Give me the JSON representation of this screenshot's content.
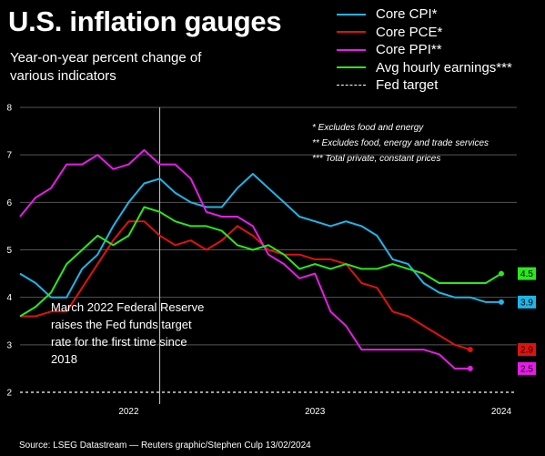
{
  "title": "U.S. inflation gauges",
  "subtitle": "Year-on-year percent change of various indicators",
  "footnotes": [
    "* Excludes food and energy",
    "** Excludes food, energy and trade services",
    "*** Total private, constant prices"
  ],
  "annotation": "March 2022 Federal Reserve raises the Fed funds target rate for the first time since 2018",
  "source": "Source: LSEG Datastream — Reuters graphic/Stephen Culp 13/02/2024",
  "chart_data": {
    "type": "line",
    "title": "U.S. inflation gauges",
    "x": [
      "2021-06",
      "2021-07",
      "2021-08",
      "2021-09",
      "2021-10",
      "2021-11",
      "2021-12",
      "2022-01",
      "2022-02",
      "2022-03",
      "2022-04",
      "2022-05",
      "2022-06",
      "2022-07",
      "2022-08",
      "2022-09",
      "2022-10",
      "2022-11",
      "2022-12",
      "2023-01",
      "2023-02",
      "2023-03",
      "2023-04",
      "2023-05",
      "2023-06",
      "2023-07",
      "2023-08",
      "2023-09",
      "2023-10",
      "2023-11",
      "2023-12",
      "2024-01"
    ],
    "x_tick_labels": [
      {
        "label": "2022",
        "date": "2022-01"
      },
      {
        "label": "2023",
        "date": "2023-01"
      },
      {
        "label": "2024",
        "date": "2024-01"
      }
    ],
    "ylim": [
      2,
      8
    ],
    "y_ticks": [
      2,
      3,
      4,
      5,
      6,
      7,
      8
    ],
    "grid": true,
    "legend_position": "top-right",
    "series": [
      {
        "name": "Core CPI*",
        "color": "#1eb6e8",
        "end_label": "3.9",
        "points": [
          [
            "2021-06",
            4.5
          ],
          [
            "2021-07",
            4.3
          ],
          [
            "2021-08",
            4.0
          ],
          [
            "2021-09",
            4.0
          ],
          [
            "2021-10",
            4.6
          ],
          [
            "2021-11",
            4.9
          ],
          [
            "2021-12",
            5.5
          ],
          [
            "2022-01",
            6.0
          ],
          [
            "2022-02",
            6.4
          ],
          [
            "2022-03",
            6.5
          ],
          [
            "2022-04",
            6.2
          ],
          [
            "2022-05",
            6.0
          ],
          [
            "2022-06",
            5.9
          ],
          [
            "2022-07",
            5.9
          ],
          [
            "2022-08",
            6.3
          ],
          [
            "2022-09",
            6.6
          ],
          [
            "2022-10",
            6.3
          ],
          [
            "2022-11",
            6.0
          ],
          [
            "2022-12",
            5.7
          ],
          [
            "2023-01",
            5.6
          ],
          [
            "2023-02",
            5.5
          ],
          [
            "2023-03",
            5.6
          ],
          [
            "2023-04",
            5.5
          ],
          [
            "2023-05",
            5.3
          ],
          [
            "2023-06",
            4.8
          ],
          [
            "2023-07",
            4.7
          ],
          [
            "2023-08",
            4.3
          ],
          [
            "2023-09",
            4.1
          ],
          [
            "2023-10",
            4.0
          ],
          [
            "2023-11",
            4.0
          ],
          [
            "2023-12",
            3.9
          ],
          [
            "2024-01",
            3.9
          ]
        ]
      },
      {
        "name": "Core PCE*",
        "color": "#e0120f",
        "end_label": "2.9",
        "points": [
          [
            "2021-06",
            3.6
          ],
          [
            "2021-07",
            3.6
          ],
          [
            "2021-08",
            3.7
          ],
          [
            "2021-09",
            3.7
          ],
          [
            "2021-10",
            4.2
          ],
          [
            "2021-11",
            4.7
          ],
          [
            "2021-12",
            5.2
          ],
          [
            "2022-01",
            5.6
          ],
          [
            "2022-02",
            5.6
          ],
          [
            "2022-03",
            5.3
          ],
          [
            "2022-04",
            5.1
          ],
          [
            "2022-05",
            5.2
          ],
          [
            "2022-06",
            5.0
          ],
          [
            "2022-07",
            5.2
          ],
          [
            "2022-08",
            5.5
          ],
          [
            "2022-09",
            5.3
          ],
          [
            "2022-10",
            5.0
          ],
          [
            "2022-11",
            4.9
          ],
          [
            "2022-12",
            4.9
          ],
          [
            "2023-01",
            4.8
          ],
          [
            "2023-02",
            4.8
          ],
          [
            "2023-03",
            4.7
          ],
          [
            "2023-04",
            4.3
          ],
          [
            "2023-05",
            4.2
          ],
          [
            "2023-06",
            3.7
          ],
          [
            "2023-07",
            3.6
          ],
          [
            "2023-08",
            3.4
          ],
          [
            "2023-09",
            3.2
          ],
          [
            "2023-10",
            3.0
          ],
          [
            "2023-11",
            2.9
          ]
        ]
      },
      {
        "name": "Core PPI**",
        "color": "#e81ce8",
        "end_label": "2.5",
        "points": [
          [
            "2021-06",
            5.7
          ],
          [
            "2021-07",
            6.1
          ],
          [
            "2021-08",
            6.3
          ],
          [
            "2021-09",
            6.8
          ],
          [
            "2021-10",
            6.8
          ],
          [
            "2021-11",
            7.0
          ],
          [
            "2021-12",
            6.7
          ],
          [
            "2022-01",
            6.8
          ],
          [
            "2022-02",
            7.1
          ],
          [
            "2022-03",
            6.8
          ],
          [
            "2022-04",
            6.8
          ],
          [
            "2022-05",
            6.5
          ],
          [
            "2022-06",
            5.8
          ],
          [
            "2022-07",
            5.7
          ],
          [
            "2022-08",
            5.7
          ],
          [
            "2022-09",
            5.5
          ],
          [
            "2022-10",
            4.9
          ],
          [
            "2022-11",
            4.7
          ],
          [
            "2022-12",
            4.4
          ],
          [
            "2023-01",
            4.5
          ],
          [
            "2023-02",
            3.7
          ],
          [
            "2023-03",
            3.4
          ],
          [
            "2023-04",
            2.9
          ],
          [
            "2023-05",
            2.9
          ],
          [
            "2023-06",
            2.9
          ],
          [
            "2023-07",
            2.9
          ],
          [
            "2023-08",
            2.9
          ],
          [
            "2023-09",
            2.8
          ],
          [
            "2023-10",
            2.5
          ],
          [
            "2023-11",
            2.5
          ]
        ]
      },
      {
        "name": "Avg hourly earnings***",
        "color": "#2be81c",
        "end_label": "4.5",
        "points": [
          [
            "2021-06",
            3.6
          ],
          [
            "2021-07",
            3.8
          ],
          [
            "2021-08",
            4.1
          ],
          [
            "2021-09",
            4.7
          ],
          [
            "2021-10",
            5.0
          ],
          [
            "2021-11",
            5.3
          ],
          [
            "2021-12",
            5.1
          ],
          [
            "2022-01",
            5.3
          ],
          [
            "2022-02",
            5.9
          ],
          [
            "2022-03",
            5.8
          ],
          [
            "2022-04",
            5.6
          ],
          [
            "2022-05",
            5.5
          ],
          [
            "2022-06",
            5.5
          ],
          [
            "2022-07",
            5.4
          ],
          [
            "2022-08",
            5.1
          ],
          [
            "2022-09",
            5.0
          ],
          [
            "2022-10",
            5.1
          ],
          [
            "2022-11",
            4.9
          ],
          [
            "2022-12",
            4.6
          ],
          [
            "2023-01",
            4.7
          ],
          [
            "2023-02",
            4.6
          ],
          [
            "2023-03",
            4.7
          ],
          [
            "2023-04",
            4.6
          ],
          [
            "2023-05",
            4.6
          ],
          [
            "2023-06",
            4.7
          ],
          [
            "2023-07",
            4.6
          ],
          [
            "2023-08",
            4.5
          ],
          [
            "2023-09",
            4.3
          ],
          [
            "2023-10",
            4.3
          ],
          [
            "2023-11",
            4.3
          ],
          [
            "2023-12",
            4.3
          ],
          [
            "2024-01",
            4.5
          ]
        ]
      },
      {
        "name": "Fed target",
        "color": "#ffffff",
        "style": "dashed",
        "value": 2
      }
    ],
    "annotations": [
      {
        "date": "2022-03",
        "text": "March 2022 Federal Reserve raises the Fed funds target rate for the first time since 2018"
      }
    ]
  }
}
